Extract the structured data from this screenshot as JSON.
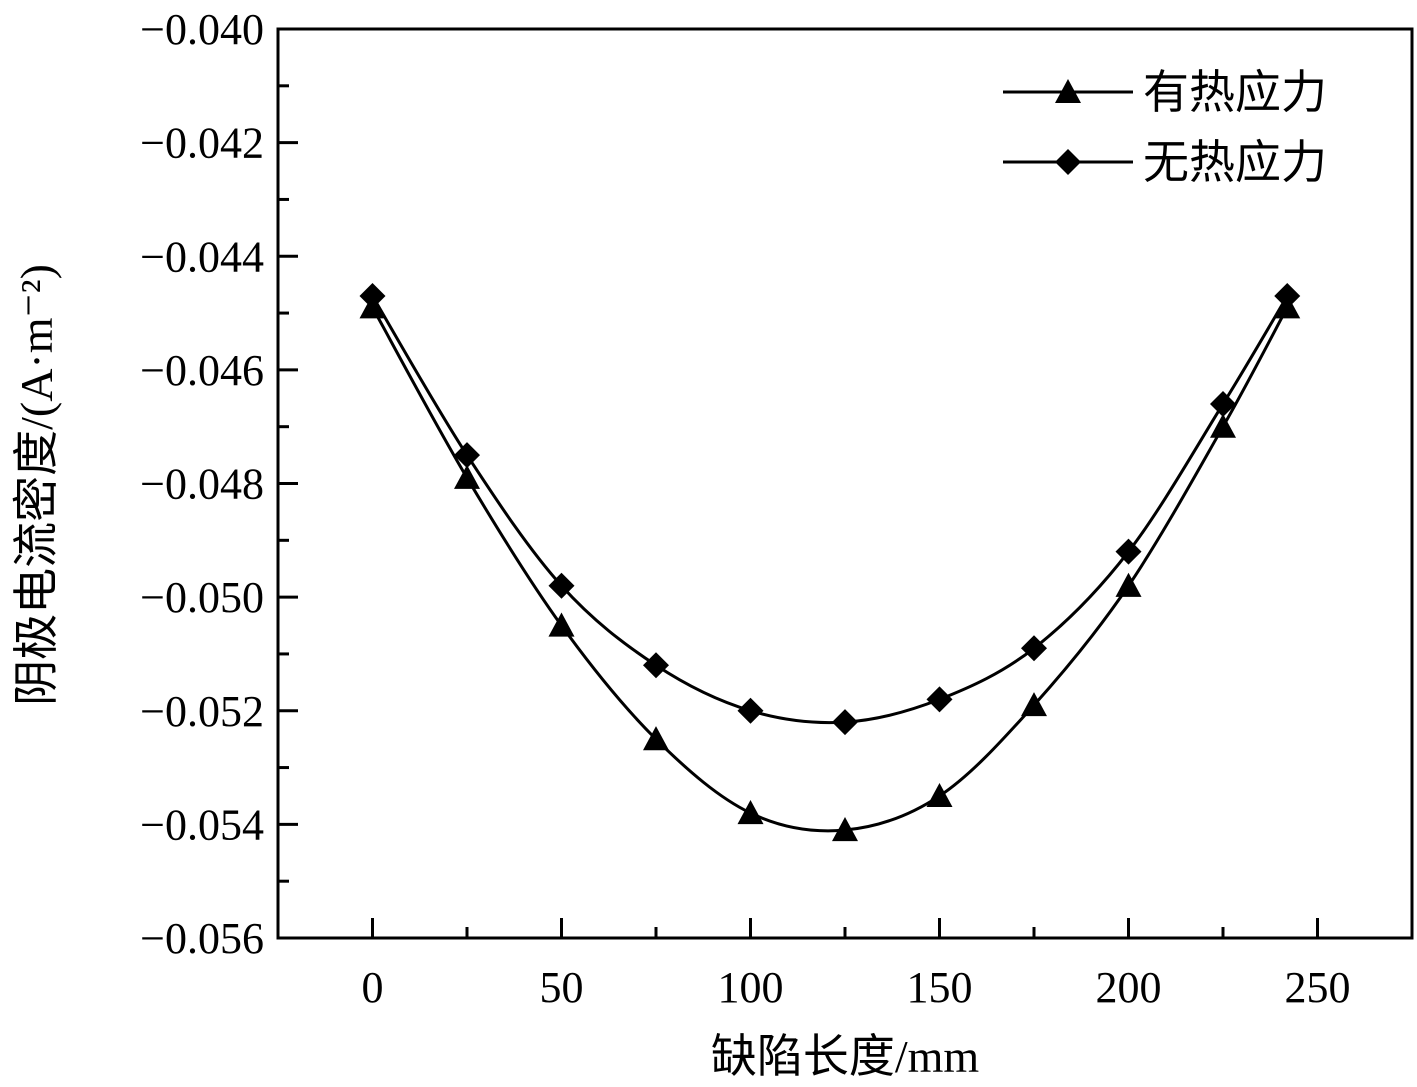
{
  "chart_data": {
    "type": "line",
    "title": "",
    "xlabel": "缺陷长度/mm",
    "ylabel": "阴极电流密度/(A·m⁻²)",
    "xlim": [
      -25,
      275
    ],
    "ylim": [
      -0.056,
      -0.04
    ],
    "xticks": [
      0,
      50,
      100,
      150,
      200,
      250
    ],
    "xtick_labels": [
      "0",
      "50",
      "100",
      "150",
      "200",
      "250"
    ],
    "yticks": [
      -0.04,
      -0.042,
      -0.044,
      -0.046,
      -0.048,
      -0.05,
      -0.052,
      -0.054,
      -0.056
    ],
    "ytick_labels": [
      "−0.040",
      "−0.042",
      "−0.044",
      "−0.046",
      "−0.048",
      "−0.050",
      "−0.052",
      "−0.054",
      "−0.056"
    ],
    "grid": false,
    "legend_position": "top-right",
    "x": [
      0,
      25,
      50,
      75,
      100,
      125,
      150,
      175,
      200,
      225,
      242
    ],
    "series": [
      {
        "name": "有热应力",
        "marker": "triangle",
        "values": [
          -0.0449,
          -0.0479,
          -0.0505,
          -0.0525,
          -0.0538,
          -0.0541,
          -0.0535,
          -0.0519,
          -0.0498,
          -0.047,
          -0.0449
        ]
      },
      {
        "name": "无热应力",
        "marker": "diamond",
        "values": [
          -0.0447,
          -0.0475,
          -0.0498,
          -0.0512,
          -0.052,
          -0.0522,
          -0.0518,
          -0.0509,
          -0.0492,
          -0.0466,
          -0.0447
        ]
      }
    ],
    "colors": {
      "line": "#000000",
      "marker": "#000000",
      "axis": "#000000"
    }
  }
}
